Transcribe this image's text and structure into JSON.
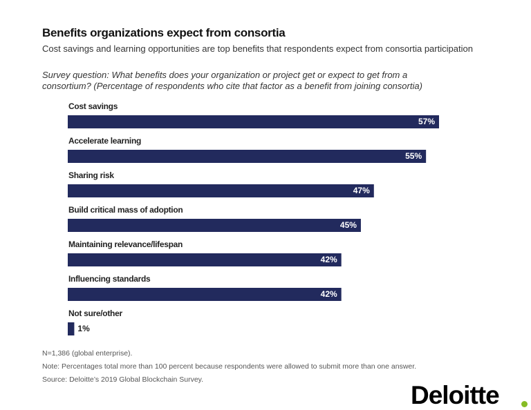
{
  "chart_data": {
    "type": "bar",
    "orientation": "horizontal",
    "title": "Benefits organizations expect from consortia",
    "subtitle": "Cost savings and learning opportunities are top benefits that respondents expect from consortia participation",
    "question": "Survey question: What benefits does your organization or project get or expect to get from a consortium? (Percentage of respondents who cite that factor as a benefit from joining consortia)",
    "categories": [
      "Cost savings",
      "Accelerate learning",
      "Sharing risk",
      "Build critical mass of adoption",
      "Maintaining relevance/lifespan",
      "Influencing standards",
      "Not sure/other"
    ],
    "values": [
      57,
      55,
      47,
      45,
      42,
      42,
      1
    ],
    "value_labels": [
      "57%",
      "55%",
      "47%",
      "45%",
      "42%",
      "42%",
      "1%"
    ],
    "color": "#222a5d",
    "notes": [
      "N=1,386 (global enterprise).",
      "Note: Percentages total more than 100 percent because respondents were allowed to submit more than one answer.",
      "Source: Deloitte’s 2019 Global Blockchain Survey."
    ]
  },
  "logo": "Deloitte"
}
